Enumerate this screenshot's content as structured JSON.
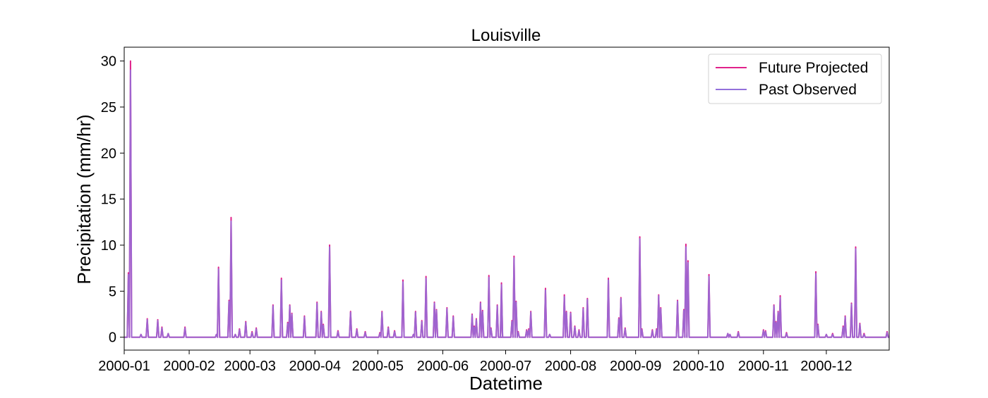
{
  "chart_data": {
    "type": "line",
    "title": "Louisville",
    "xlabel": "Datetime",
    "ylabel": "Precipitation (mm/hr)",
    "xlim": [
      "2000-01-01",
      "2000-12-31"
    ],
    "ylim": [
      -1.4,
      31.5
    ],
    "x_ticks": [
      "2000-01",
      "2000-02",
      "2000-03",
      "2000-04",
      "2000-05",
      "2000-06",
      "2000-07",
      "2000-08",
      "2000-09",
      "2000-10",
      "2000-11",
      "2000-12"
    ],
    "y_ticks": [
      0,
      5,
      10,
      15,
      20,
      25,
      30
    ],
    "grid": false,
    "legend_position": "top-right",
    "series": [
      {
        "name": "Future Projected",
        "color": "#e0218a",
        "events": [
          [
            "2000-01-03",
            7.0
          ],
          [
            "2000-01-04",
            30.0
          ],
          [
            "2000-01-09",
            0.3
          ],
          [
            "2000-01-12",
            2.0
          ],
          [
            "2000-01-17",
            1.9
          ],
          [
            "2000-01-19",
            1.1
          ],
          [
            "2000-01-22",
            0.4
          ],
          [
            "2000-01-30",
            1.1
          ],
          [
            "2000-02-14",
            0.3
          ],
          [
            "2000-02-15",
            7.6
          ],
          [
            "2000-02-20",
            4.0
          ],
          [
            "2000-02-21",
            13.0
          ],
          [
            "2000-02-23",
            0.3
          ],
          [
            "2000-02-25",
            0.9
          ],
          [
            "2000-02-28",
            1.7
          ],
          [
            "2000-03-02",
            0.6
          ],
          [
            "2000-03-04",
            1.0
          ],
          [
            "2000-03-12",
            3.5
          ],
          [
            "2000-03-16",
            6.4
          ],
          [
            "2000-03-19",
            1.6
          ],
          [
            "2000-03-20",
            3.5
          ],
          [
            "2000-03-21",
            2.6
          ],
          [
            "2000-03-27",
            2.3
          ],
          [
            "2000-04-02",
            3.8
          ],
          [
            "2000-04-04",
            2.8
          ],
          [
            "2000-04-05",
            1.4
          ],
          [
            "2000-04-08",
            10.0
          ],
          [
            "2000-04-12",
            0.7
          ],
          [
            "2000-04-18",
            2.8
          ],
          [
            "2000-04-21",
            0.9
          ],
          [
            "2000-04-25",
            0.6
          ],
          [
            "2000-05-02",
            0.5
          ],
          [
            "2000-05-03",
            2.8
          ],
          [
            "2000-05-06",
            1.1
          ],
          [
            "2000-05-09",
            0.7
          ],
          [
            "2000-05-13",
            6.2
          ],
          [
            "2000-05-18",
            0.3
          ],
          [
            "2000-05-19",
            2.8
          ],
          [
            "2000-05-22",
            1.8
          ],
          [
            "2000-05-24",
            6.6
          ],
          [
            "2000-05-28",
            3.8
          ],
          [
            "2000-05-29",
            3.0
          ],
          [
            "2000-06-03",
            3.2
          ],
          [
            "2000-06-06",
            2.3
          ],
          [
            "2000-06-15",
            2.5
          ],
          [
            "2000-06-16",
            1.2
          ],
          [
            "2000-06-17",
            2.0
          ],
          [
            "2000-06-19",
            3.8
          ],
          [
            "2000-06-20",
            2.9
          ],
          [
            "2000-06-23",
            6.7
          ],
          [
            "2000-06-24",
            1.0
          ],
          [
            "2000-06-27",
            3.5
          ],
          [
            "2000-06-29",
            5.9
          ],
          [
            "2000-06-29",
            2.7
          ],
          [
            "2000-07-04",
            1.8
          ],
          [
            "2000-07-05",
            8.8
          ],
          [
            "2000-07-06",
            3.9
          ],
          [
            "2000-07-07",
            0.6
          ],
          [
            "2000-07-11",
            0.8
          ],
          [
            "2000-07-12",
            0.9
          ],
          [
            "2000-07-13",
            2.8
          ],
          [
            "2000-07-20",
            5.3
          ],
          [
            "2000-07-22",
            0.3
          ],
          [
            "2000-07-29",
            4.6
          ],
          [
            "2000-07-30",
            2.8
          ],
          [
            "2000-08-01",
            2.7
          ],
          [
            "2000-08-03",
            1.2
          ],
          [
            "2000-08-05",
            0.8
          ],
          [
            "2000-08-07",
            3.2
          ],
          [
            "2000-08-09",
            4.2
          ],
          [
            "2000-08-19",
            6.4
          ],
          [
            "2000-08-24",
            2.1
          ],
          [
            "2000-08-25",
            4.3
          ],
          [
            "2000-08-27",
            1.0
          ],
          [
            "2000-09-03",
            10.9
          ],
          [
            "2000-09-04",
            0.9
          ],
          [
            "2000-09-09",
            0.8
          ],
          [
            "2000-09-11",
            0.9
          ],
          [
            "2000-09-12",
            4.6
          ],
          [
            "2000-09-13",
            3.2
          ],
          [
            "2000-09-21",
            4.0
          ],
          [
            "2000-09-24",
            3.0
          ],
          [
            "2000-09-25",
            10.1
          ],
          [
            "2000-09-26",
            8.3
          ],
          [
            "2000-10-06",
            6.8
          ],
          [
            "2000-10-15",
            0.4
          ],
          [
            "2000-10-16",
            0.3
          ],
          [
            "2000-10-20",
            0.6
          ],
          [
            "2000-11-01",
            0.8
          ],
          [
            "2000-11-02",
            0.7
          ],
          [
            "2000-11-06",
            3.5
          ],
          [
            "2000-11-07",
            1.7
          ],
          [
            "2000-11-08",
            2.8
          ],
          [
            "2000-11-09",
            4.5
          ],
          [
            "2000-11-12",
            0.5
          ],
          [
            "2000-11-26",
            7.1
          ],
          [
            "2000-11-27",
            1.4
          ],
          [
            "2000-12-01",
            0.3
          ],
          [
            "2000-12-04",
            0.4
          ],
          [
            "2000-12-09",
            1.2
          ],
          [
            "2000-12-10",
            2.3
          ],
          [
            "2000-12-13",
            3.7
          ],
          [
            "2000-12-15",
            9.8
          ],
          [
            "2000-12-17",
            1.5
          ],
          [
            "2000-12-19",
            0.4
          ],
          [
            "2000-12-30",
            0.6
          ]
        ]
      },
      {
        "name": "Past Observed",
        "color": "#9370db",
        "events": [
          [
            "2000-01-03",
            6.8
          ],
          [
            "2000-01-04",
            29.0
          ],
          [
            "2000-01-09",
            0.3
          ],
          [
            "2000-01-12",
            1.9
          ],
          [
            "2000-01-17",
            1.8
          ],
          [
            "2000-01-19",
            1.0
          ],
          [
            "2000-01-22",
            0.4
          ],
          [
            "2000-01-30",
            1.0
          ],
          [
            "2000-02-14",
            0.3
          ],
          [
            "2000-02-15",
            7.4
          ],
          [
            "2000-02-20",
            3.9
          ],
          [
            "2000-02-21",
            12.6
          ],
          [
            "2000-02-23",
            0.3
          ],
          [
            "2000-02-25",
            0.8
          ],
          [
            "2000-02-28",
            1.6
          ],
          [
            "2000-03-02",
            0.5
          ],
          [
            "2000-03-04",
            0.9
          ],
          [
            "2000-03-12",
            3.4
          ],
          [
            "2000-03-16",
            6.2
          ],
          [
            "2000-03-19",
            1.5
          ],
          [
            "2000-03-20",
            3.4
          ],
          [
            "2000-03-21",
            2.5
          ],
          [
            "2000-03-27",
            2.2
          ],
          [
            "2000-04-02",
            3.7
          ],
          [
            "2000-04-04",
            2.7
          ],
          [
            "2000-04-05",
            1.3
          ],
          [
            "2000-04-08",
            9.8
          ],
          [
            "2000-04-12",
            0.6
          ],
          [
            "2000-04-18",
            2.7
          ],
          [
            "2000-04-21",
            0.8
          ],
          [
            "2000-04-25",
            0.5
          ],
          [
            "2000-05-02",
            0.4
          ],
          [
            "2000-05-03",
            2.7
          ],
          [
            "2000-05-06",
            1.0
          ],
          [
            "2000-05-09",
            0.6
          ],
          [
            "2000-05-13",
            6.0
          ],
          [
            "2000-05-18",
            0.3
          ],
          [
            "2000-05-19",
            2.7
          ],
          [
            "2000-05-22",
            1.7
          ],
          [
            "2000-05-24",
            6.4
          ],
          [
            "2000-05-28",
            3.7
          ],
          [
            "2000-05-29",
            2.9
          ],
          [
            "2000-06-03",
            3.1
          ],
          [
            "2000-06-06",
            2.2
          ],
          [
            "2000-06-15",
            2.4
          ],
          [
            "2000-06-16",
            1.1
          ],
          [
            "2000-06-17",
            1.9
          ],
          [
            "2000-06-19",
            3.7
          ],
          [
            "2000-06-20",
            2.8
          ],
          [
            "2000-06-23",
            6.5
          ],
          [
            "2000-06-24",
            0.9
          ],
          [
            "2000-06-27",
            3.4
          ],
          [
            "2000-06-29",
            5.7
          ],
          [
            "2000-06-29",
            2.6
          ],
          [
            "2000-07-04",
            1.7
          ],
          [
            "2000-07-05",
            8.6
          ],
          [
            "2000-07-06",
            3.8
          ],
          [
            "2000-07-07",
            0.5
          ],
          [
            "2000-07-11",
            0.7
          ],
          [
            "2000-07-12",
            0.8
          ],
          [
            "2000-07-13",
            2.7
          ],
          [
            "2000-07-20",
            5.1
          ],
          [
            "2000-07-22",
            0.3
          ],
          [
            "2000-07-29",
            4.4
          ],
          [
            "2000-07-30",
            2.7
          ],
          [
            "2000-08-01",
            2.6
          ],
          [
            "2000-08-03",
            1.1
          ],
          [
            "2000-08-05",
            0.7
          ],
          [
            "2000-08-07",
            3.1
          ],
          [
            "2000-08-09",
            4.1
          ],
          [
            "2000-08-19",
            6.2
          ],
          [
            "2000-08-24",
            2.0
          ],
          [
            "2000-08-25",
            4.2
          ],
          [
            "2000-08-27",
            0.9
          ],
          [
            "2000-09-03",
            10.7
          ],
          [
            "2000-09-04",
            0.8
          ],
          [
            "2000-09-09",
            0.7
          ],
          [
            "2000-09-11",
            0.8
          ],
          [
            "2000-09-12",
            4.5
          ],
          [
            "2000-09-13",
            3.1
          ],
          [
            "2000-09-21",
            3.9
          ],
          [
            "2000-09-24",
            2.9
          ],
          [
            "2000-09-25",
            9.8
          ],
          [
            "2000-09-26",
            8.1
          ],
          [
            "2000-10-06",
            6.6
          ],
          [
            "2000-10-15",
            0.4
          ],
          [
            "2000-10-16",
            0.3
          ],
          [
            "2000-10-20",
            0.5
          ],
          [
            "2000-11-01",
            0.7
          ],
          [
            "2000-11-02",
            0.6
          ],
          [
            "2000-11-06",
            3.4
          ],
          [
            "2000-11-07",
            1.6
          ],
          [
            "2000-11-08",
            2.7
          ],
          [
            "2000-11-09",
            4.3
          ],
          [
            "2000-11-12",
            0.4
          ],
          [
            "2000-11-26",
            6.9
          ],
          [
            "2000-11-27",
            1.3
          ],
          [
            "2000-12-01",
            0.3
          ],
          [
            "2000-12-04",
            0.3
          ],
          [
            "2000-12-09",
            1.1
          ],
          [
            "2000-12-10",
            2.2
          ],
          [
            "2000-12-13",
            3.6
          ],
          [
            "2000-12-15",
            9.6
          ],
          [
            "2000-12-17",
            1.4
          ],
          [
            "2000-12-19",
            0.3
          ],
          [
            "2000-12-30",
            0.5
          ]
        ]
      }
    ]
  }
}
